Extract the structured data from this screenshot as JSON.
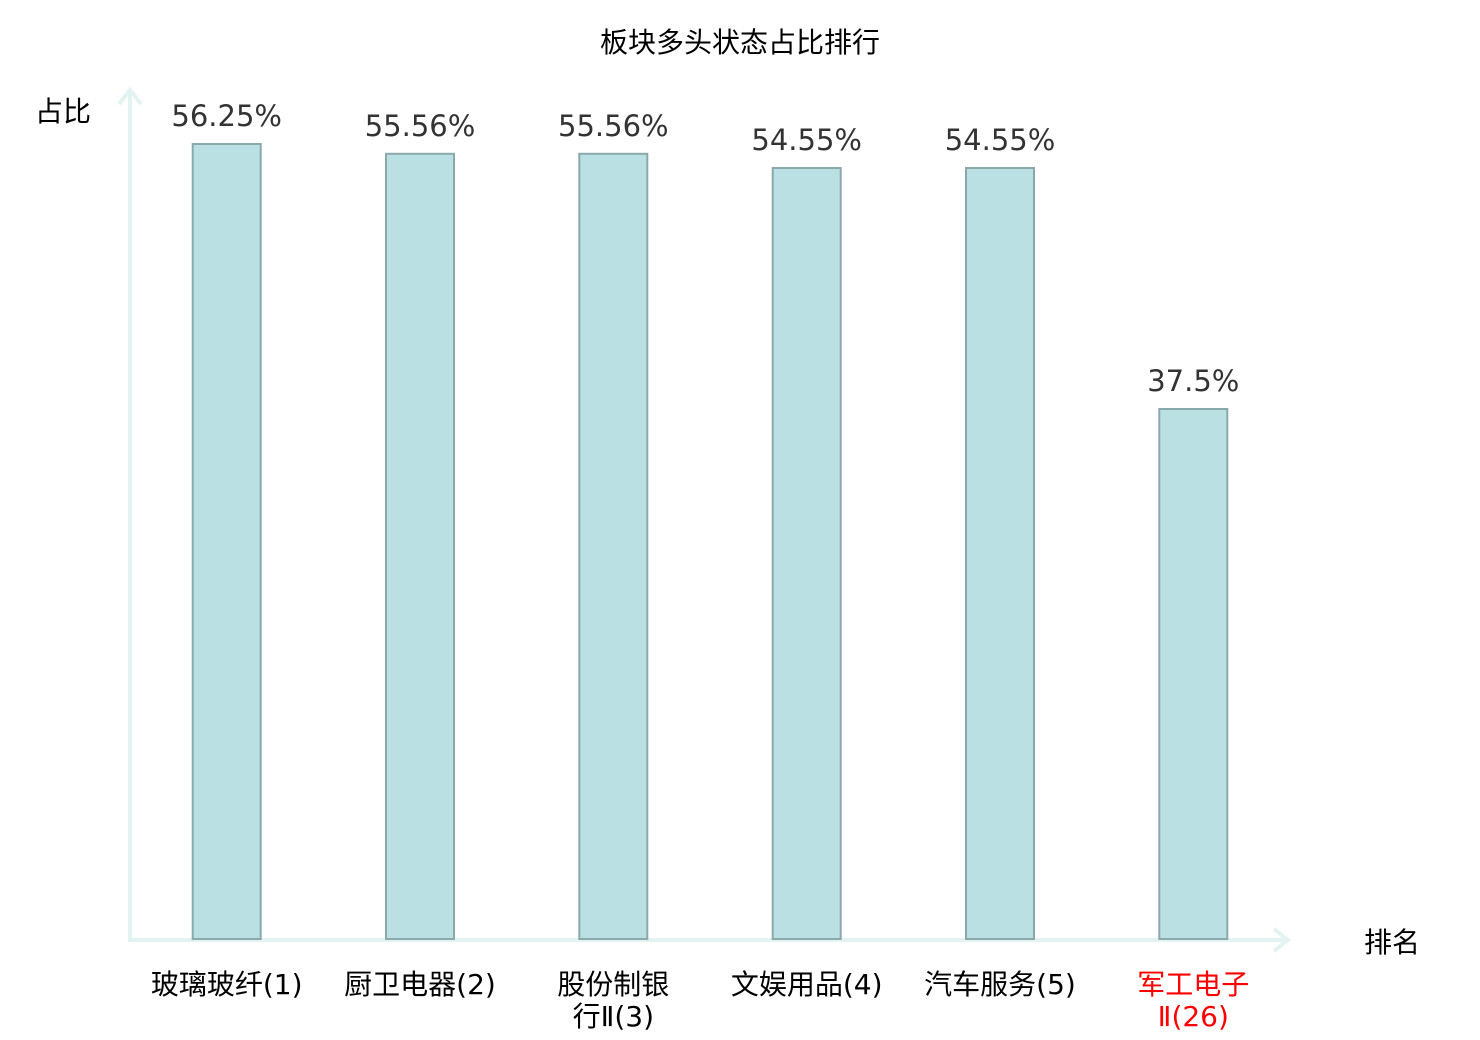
{
  "chart_data": {
    "type": "bar",
    "title": "板块多头状态占比排行",
    "ylabel": "占比",
    "xlabel": "排名",
    "categories": [
      [
        "玻璃玻纤(1)"
      ],
      [
        "厨卫电器(2)"
      ],
      [
        "股份制银",
        "行Ⅱ(3)"
      ],
      [
        "文娱用品(4)"
      ],
      [
        "汽车服务(5)"
      ],
      [
        "军工电子",
        "Ⅱ(26)"
      ]
    ],
    "values": [
      56.25,
      55.56,
      55.56,
      54.55,
      54.55,
      37.5
    ],
    "value_labels": [
      "56.25%",
      "55.56%",
      "55.56%",
      "54.55%",
      "54.55%",
      "37.5%"
    ],
    "highlight_index": 5,
    "ylim": [
      0,
      56.25
    ],
    "colors": {
      "bar_fill": "#bbe0e3",
      "bar_stroke": "#8aa9ab",
      "axis": "#e2f3f1",
      "text": "#333333",
      "highlight_text": "#ff0000"
    }
  }
}
